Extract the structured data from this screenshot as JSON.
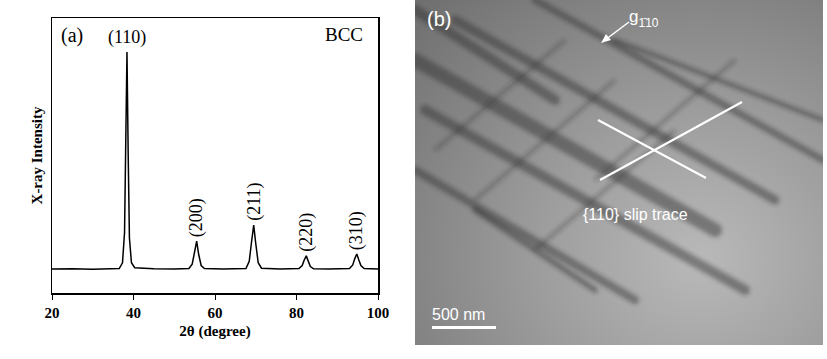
{
  "chart_data": {
    "type": "line",
    "color": "#000000",
    "x_label": "2θ (degree)",
    "y_label": "X-ray Intensity",
    "x": [
      20,
      25,
      30,
      35,
      36.5,
      37.3,
      37.8,
      38.1,
      38.4,
      38.7,
      39.0,
      39.5,
      40.3,
      45,
      50,
      53.6,
      54.4,
      55.0,
      55.5,
      56.0,
      56.6,
      57.4,
      62,
      67.6,
      68.4,
      69.0,
      69.5,
      70.0,
      70.6,
      71.4,
      76,
      80.6,
      81.4,
      81.9,
      82.4,
      82.9,
      83.4,
      84.2,
      88,
      93.0,
      93.8,
      94.3,
      94.8,
      95.3,
      95.8,
      96.6,
      100
    ],
    "values": [
      8.7,
      8.8,
      8.6,
      8.8,
      8.9,
      11,
      22,
      55,
      87.6,
      50,
      20,
      11,
      9.2,
      8.8,
      8.7,
      8.9,
      10.5,
      15,
      18.9,
      14,
      10,
      8.9,
      8.7,
      8.9,
      11.5,
      19,
      24.7,
      18,
      11,
      9,
      8.7,
      8.9,
      10,
      12,
      13.5,
      11.5,
      9.6,
      8.8,
      8.7,
      8.9,
      10.2,
      12.5,
      14.2,
      12,
      10,
      8.9,
      8.7
    ],
    "xlim": [
      20,
      100
    ],
    "xticks": [
      20,
      40,
      60,
      80,
      100
    ],
    "ylim": [
      0,
      100
    ],
    "tick_labels": "x",
    "annotations": [
      {
        "text": "(a)"
      },
      {
        "text": "BCC"
      },
      {
        "text": "(110)",
        "x": 38.4
      },
      {
        "text": "(200)",
        "x": 55.5
      },
      {
        "text": "(211)",
        "x": 69.5
      },
      {
        "text": "(220)",
        "x": 82.4
      },
      {
        "text": "(310)",
        "x": 94.8
      }
    ]
  },
  "micrograph": {
    "label": "(b)",
    "vector": {
      "symbol": "g",
      "subscript": "1̄10"
    },
    "annotation": "{110} slip trace",
    "scale_bar": "500 nm"
  }
}
